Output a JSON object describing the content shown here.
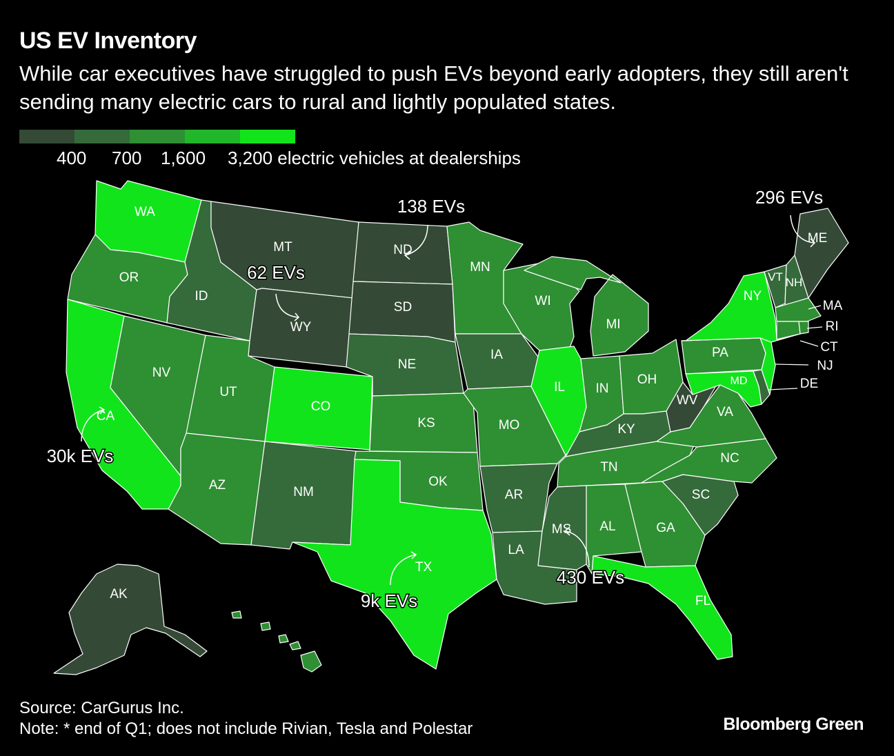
{
  "title": "US EV Inventory",
  "subtitle": "While car executives have struggled to push EVs beyond early adopters, they still aren't sending many electric cars to rural and lightly populated states.",
  "legend": {
    "colors": [
      "#344a36",
      "#356a3a",
      "#2f8f33",
      "#22b72a",
      "#12e41c"
    ],
    "labels": [
      "400",
      "700",
      "1,600",
      "3,200 electric vehicles at dealerships"
    ]
  },
  "colors": {
    "c1": "#344a36",
    "c2": "#356a3a",
    "c3": "#2f8f33",
    "c4": "#22b72a",
    "c5": "#12e41c"
  },
  "states": [
    {
      "code": "WA",
      "bucket": 5
    },
    {
      "code": "OR",
      "bucket": 3
    },
    {
      "code": "CA",
      "bucket": 5
    },
    {
      "code": "NV",
      "bucket": 3
    },
    {
      "code": "ID",
      "bucket": 2
    },
    {
      "code": "MT",
      "bucket": 1
    },
    {
      "code": "WY",
      "bucket": 1
    },
    {
      "code": "UT",
      "bucket": 3
    },
    {
      "code": "AZ",
      "bucket": 3
    },
    {
      "code": "CO",
      "bucket": 5
    },
    {
      "code": "NM",
      "bucket": 2
    },
    {
      "code": "ND",
      "bucket": 1
    },
    {
      "code": "SD",
      "bucket": 1
    },
    {
      "code": "NE",
      "bucket": 2
    },
    {
      "code": "KS",
      "bucket": 3
    },
    {
      "code": "OK",
      "bucket": 3
    },
    {
      "code": "TX",
      "bucket": 5
    },
    {
      "code": "MN",
      "bucket": 3
    },
    {
      "code": "IA",
      "bucket": 2
    },
    {
      "code": "MO",
      "bucket": 3
    },
    {
      "code": "AR",
      "bucket": 2
    },
    {
      "code": "LA",
      "bucket": 2
    },
    {
      "code": "WI",
      "bucket": 3
    },
    {
      "code": "IL",
      "bucket": 5
    },
    {
      "code": "MI",
      "bucket": 3
    },
    {
      "code": "IN",
      "bucket": 3
    },
    {
      "code": "OH",
      "bucket": 3
    },
    {
      "code": "KY",
      "bucket": 2
    },
    {
      "code": "TN",
      "bucket": 3
    },
    {
      "code": "MS",
      "bucket": 2
    },
    {
      "code": "AL",
      "bucket": 3
    },
    {
      "code": "GA",
      "bucket": 3
    },
    {
      "code": "FL",
      "bucket": 5
    },
    {
      "code": "SC",
      "bucket": 2
    },
    {
      "code": "NC",
      "bucket": 3
    },
    {
      "code": "VA",
      "bucket": 3
    },
    {
      "code": "WV",
      "bucket": 1
    },
    {
      "code": "PA",
      "bucket": 3
    },
    {
      "code": "NY",
      "bucket": 5
    },
    {
      "code": "VT",
      "bucket": 2
    },
    {
      "code": "NH",
      "bucket": 2
    },
    {
      "code": "ME",
      "bucket": 1
    },
    {
      "code": "MA",
      "bucket": 3
    },
    {
      "code": "RI",
      "bucket": 3
    },
    {
      "code": "CT",
      "bucket": 3
    },
    {
      "code": "NJ",
      "bucket": 5
    },
    {
      "code": "DE",
      "bucket": 2
    },
    {
      "code": "MD",
      "bucket": 5
    },
    {
      "code": "AK",
      "bucket": 1
    },
    {
      "code": "HI",
      "bucket": 3
    }
  ],
  "annotations": {
    "ca": "30k EVs",
    "tx": "9k EVs",
    "wy": "62 EVs",
    "nd": "138 EVs",
    "ms": "430 EVs",
    "me": "296 EVs"
  },
  "source": "Source: CarGurus Inc.",
  "note": "Note: * end of Q1; does not include Rivian, Tesla and Polestar",
  "brand": "Bloomberg Green"
}
